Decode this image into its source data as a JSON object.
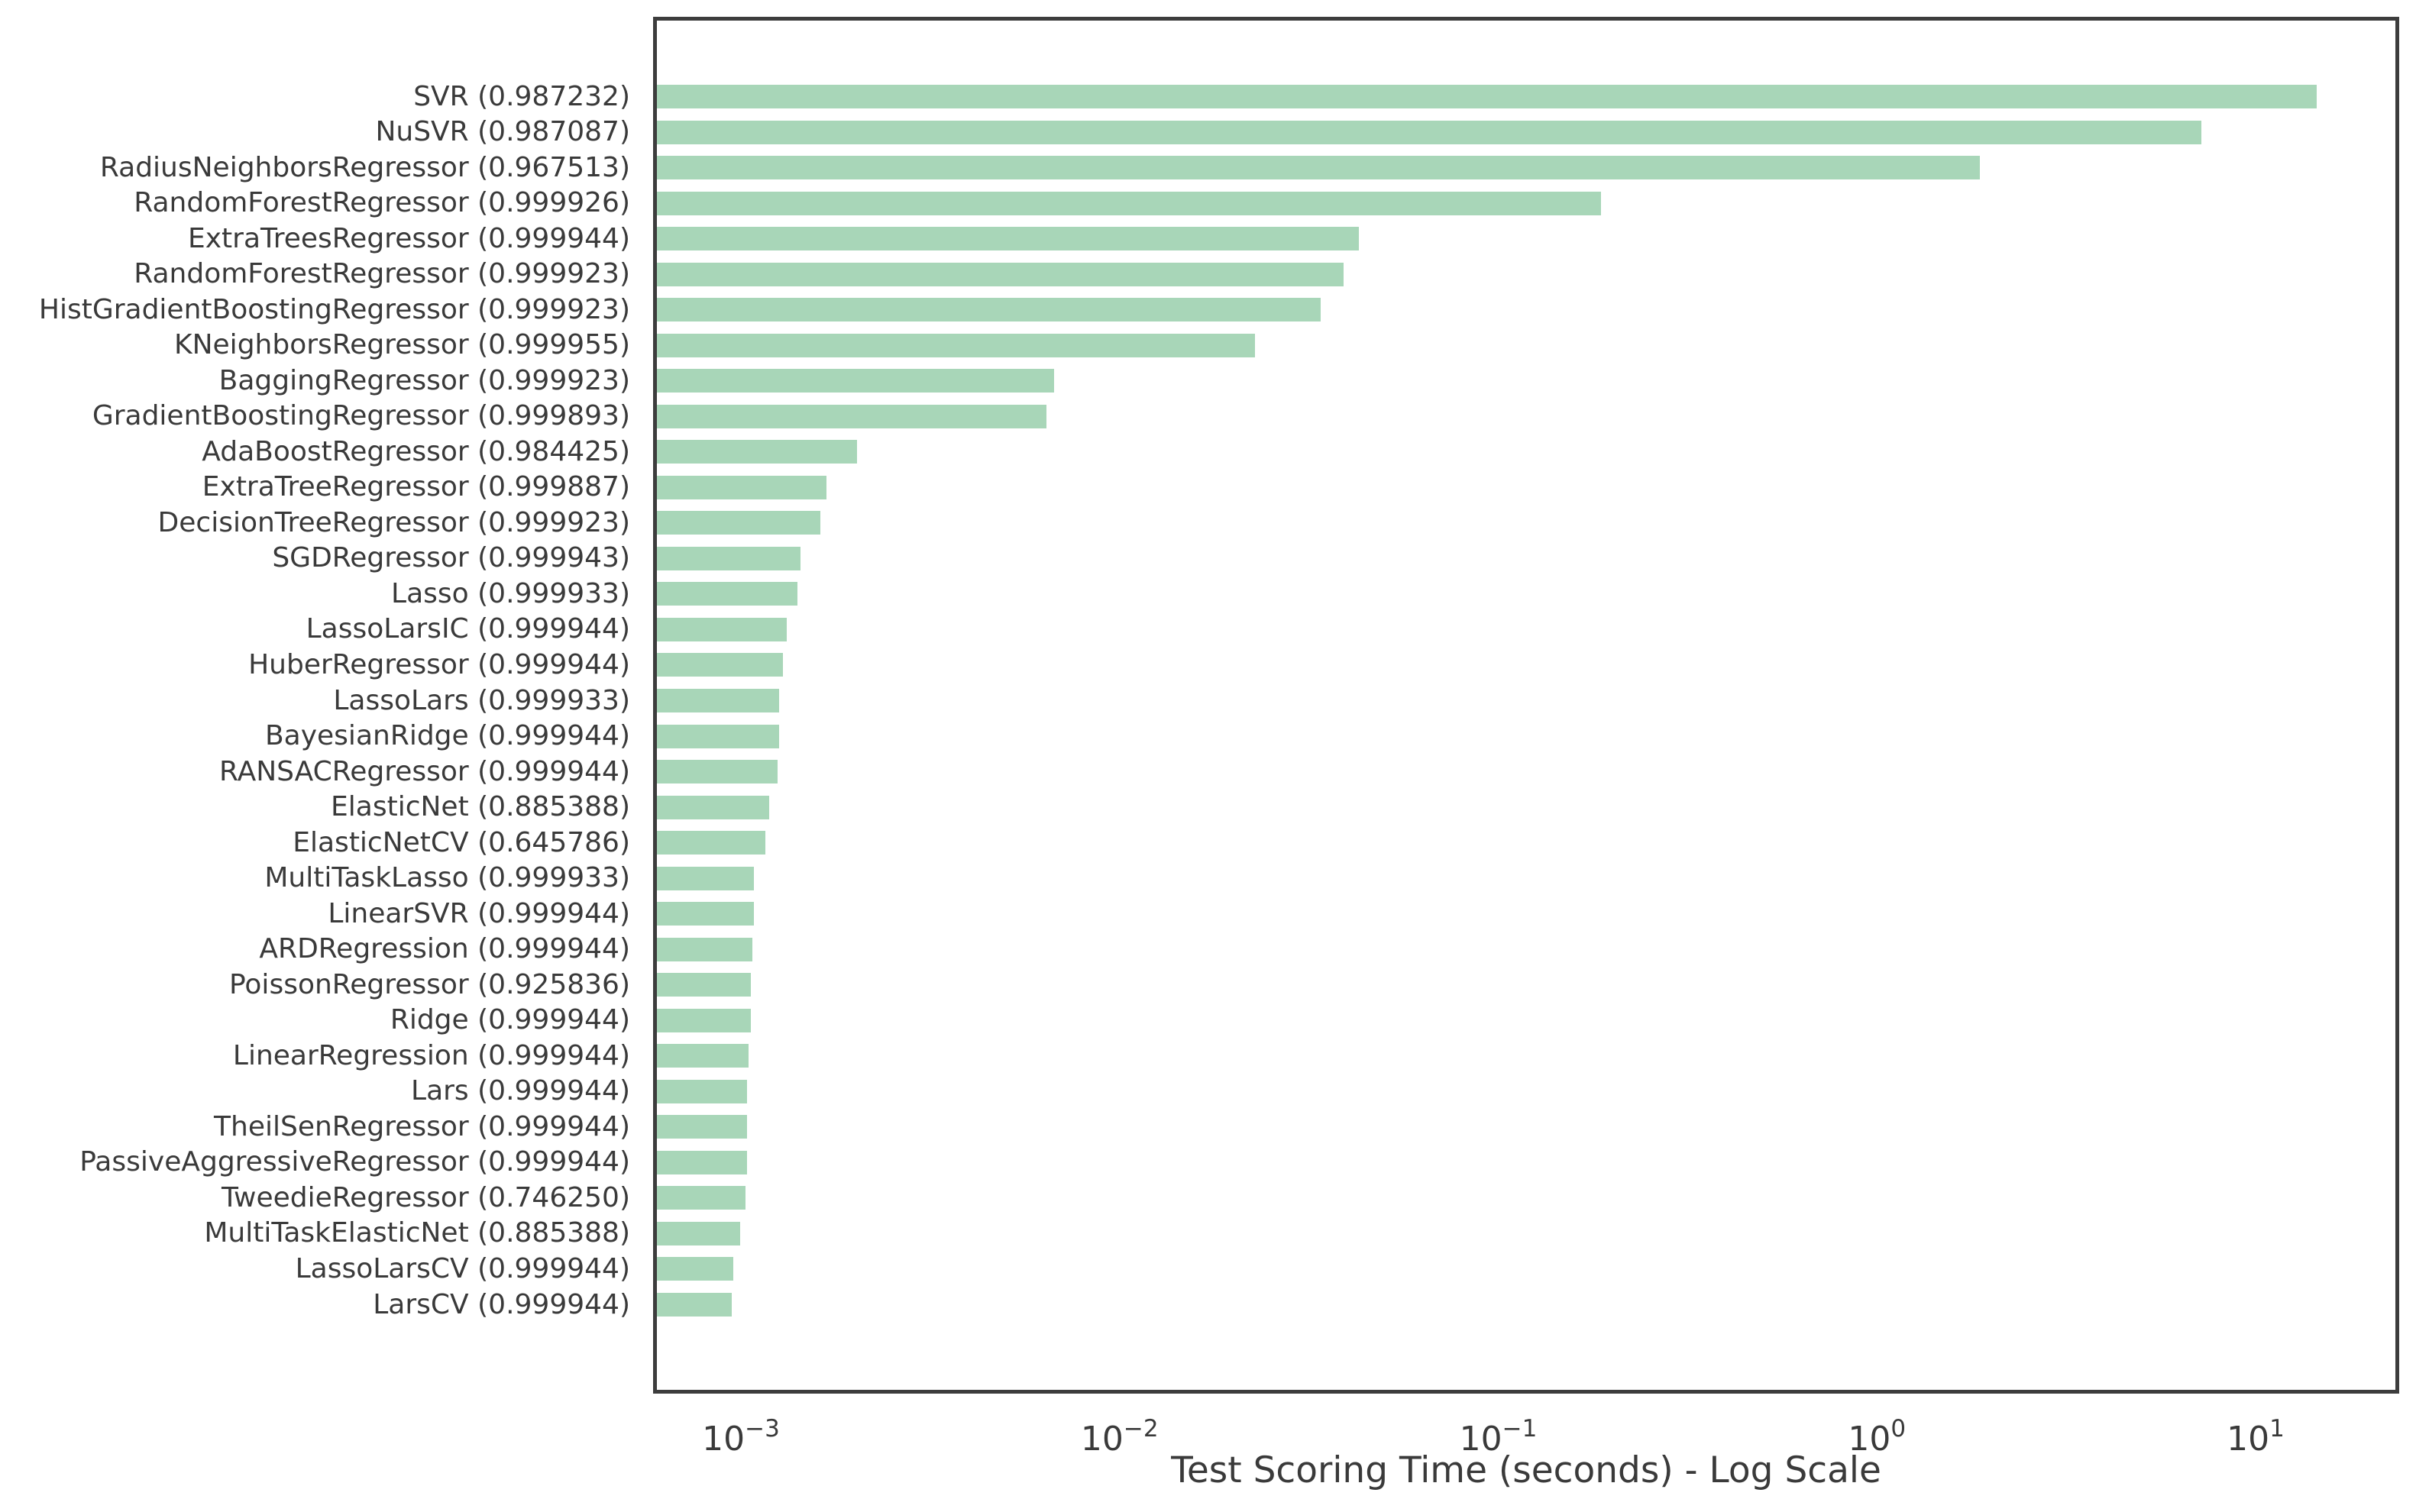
{
  "figure": {
    "bar_color": "#a8d6b8",
    "spine_color": "#3d3d3d",
    "text_color": "#3a3a3a",
    "background": "#ffffff"
  },
  "chart_data": {
    "type": "bar",
    "orientation": "horizontal",
    "title": "",
    "xlabel": "Test Scoring Time (seconds) - Log Scale",
    "ylabel": "",
    "x_scale": "log",
    "xlim": [
      0.0006,
      23.4
    ],
    "grid": false,
    "legend": null,
    "x_ticks": [
      {
        "value": 0.001,
        "base": "10",
        "exp": "−3"
      },
      {
        "value": 0.01,
        "base": "10",
        "exp": "−2"
      },
      {
        "value": 0.1,
        "base": "10",
        "exp": "−1"
      },
      {
        "value": 1,
        "base": "10",
        "exp": "0"
      },
      {
        "value": 10,
        "base": "10",
        "exp": "1"
      }
    ],
    "items": [
      {
        "label": "SVR (0.987232)",
        "seconds": 14.5
      },
      {
        "label": "NuSVR (0.987087)",
        "seconds": 7.2
      },
      {
        "label": "RadiusNeighborsRegressor (0.967513)",
        "seconds": 1.87
      },
      {
        "label": "RandomForestRegressor (0.999926)",
        "seconds": 0.187
      },
      {
        "label": "ExtraTreesRegressor (0.999944)",
        "seconds": 0.0428
      },
      {
        "label": "RandomForestRegressor (0.999923)",
        "seconds": 0.039
      },
      {
        "label": "HistGradientBoostingRegressor (0.999923)",
        "seconds": 0.034
      },
      {
        "label": "KNeighborsRegressor (0.999955)",
        "seconds": 0.0228
      },
      {
        "label": "BaggingRegressor (0.999923)",
        "seconds": 0.0067
      },
      {
        "label": "GradientBoostingRegressor (0.999893)",
        "seconds": 0.0064
      },
      {
        "label": "AdaBoostRegressor (0.984425)",
        "seconds": 0.00203
      },
      {
        "label": "ExtraTreeRegressor (0.999887)",
        "seconds": 0.00168
      },
      {
        "label": "DecisionTreeRegressor (0.999923)",
        "seconds": 0.00162
      },
      {
        "label": "SGDRegressor (0.999943)",
        "seconds": 0.00144
      },
      {
        "label": "Lasso (0.999933)",
        "seconds": 0.00141
      },
      {
        "label": "LassoLarsIC (0.999944)",
        "seconds": 0.00132
      },
      {
        "label": "HuberRegressor (0.999944)",
        "seconds": 0.00129
      },
      {
        "label": "LassoLars (0.999933)",
        "seconds": 0.00126
      },
      {
        "label": "BayesianRidge (0.999944)",
        "seconds": 0.00126
      },
      {
        "label": "RANSACRegressor (0.999944)",
        "seconds": 0.00125
      },
      {
        "label": "ElasticNet (0.885388)",
        "seconds": 0.00119
      },
      {
        "label": "ElasticNetCV (0.645786)",
        "seconds": 0.00116
      },
      {
        "label": "MultiTaskLasso (0.999933)",
        "seconds": 0.00108
      },
      {
        "label": "LinearSVR (0.999944)",
        "seconds": 0.00108
      },
      {
        "label": "ARDRegression (0.999944)",
        "seconds": 0.00107
      },
      {
        "label": "PoissonRegressor (0.925836)",
        "seconds": 0.00106
      },
      {
        "label": "Ridge (0.999944)",
        "seconds": 0.00106
      },
      {
        "label": "LinearRegression (0.999944)",
        "seconds": 0.00105
      },
      {
        "label": "Lars (0.999944)",
        "seconds": 0.00104
      },
      {
        "label": "TheilSenRegressor (0.999944)",
        "seconds": 0.00104
      },
      {
        "label": "PassiveAggressiveRegressor (0.999944)",
        "seconds": 0.00104
      },
      {
        "label": "TweedieRegressor (0.746250)",
        "seconds": 0.00103
      },
      {
        "label": "MultiTaskElasticNet (0.885388)",
        "seconds": 0.000995
      },
      {
        "label": "LassoLarsCV (0.999944)",
        "seconds": 0.000955
      },
      {
        "label": "LarsCV (0.999944)",
        "seconds": 0.000946
      }
    ]
  }
}
